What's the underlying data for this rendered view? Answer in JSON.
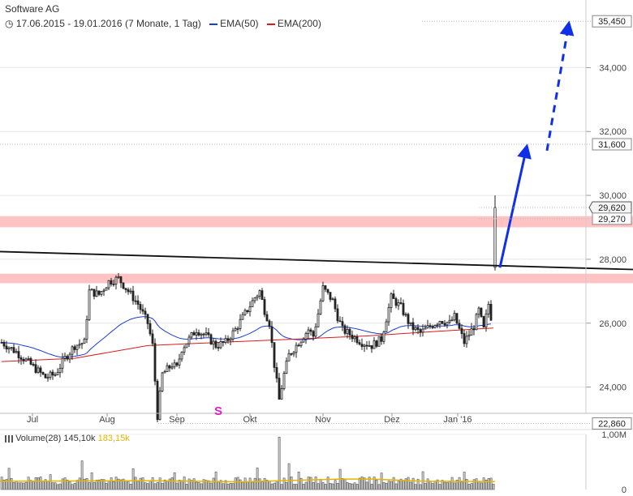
{
  "header": {
    "title": "Software AG",
    "date_range": "17.06.2015 - 19.01.2016 (7 Monate, 1 Tag)",
    "ema50_label": "EMA(50)",
    "ema200_label": "EMA(200)",
    "ema50_color": "#1a3fd0",
    "ema200_color": "#d91a1a"
  },
  "volume_legend": {
    "label": "Volume(28)",
    "value1": "145,10k",
    "value2": "183,15k",
    "value2_color": "#e8b400"
  },
  "signal_marker": {
    "text": "S",
    "color": "#e020c0"
  },
  "chart_data": {
    "type": "candlestick",
    "title": "Software AG",
    "ylim": [
      22400,
      36200
    ],
    "y_ticks": [
      24000,
      26000,
      28000,
      30000,
      32000,
      34000
    ],
    "y_tick_labels": [
      "24,000",
      "26,000",
      "28,000",
      "30,000",
      "32,000",
      "34,000"
    ],
    "boxed_labels": [
      {
        "value": 35450,
        "text": "35,450",
        "style": "plain"
      },
      {
        "value": 31600,
        "text": "31,600",
        "style": "plain"
      },
      {
        "value": 29620,
        "text": "29,620",
        "style": "current"
      },
      {
        "value": 29270,
        "text": "29,270",
        "style": "plain"
      },
      {
        "value": 22860,
        "text": "22,860",
        "style": "plain"
      }
    ],
    "x_labels": [
      "Jul",
      "Aug",
      "Sep",
      "Okt",
      "Nov",
      "Dez",
      "Jan '16"
    ],
    "resistance_zones": [
      [
        29000,
        29350
      ],
      [
        27250,
        27550
      ]
    ],
    "trendline": {
      "start": 28240,
      "end": 27680
    },
    "projection": {
      "from": 27740,
      "to_solid": 31600,
      "to_dashed": 35450
    },
    "volume_ylim": [
      0,
      1000000
    ],
    "volume_tick_labels": [
      "1,00M",
      "0"
    ]
  }
}
